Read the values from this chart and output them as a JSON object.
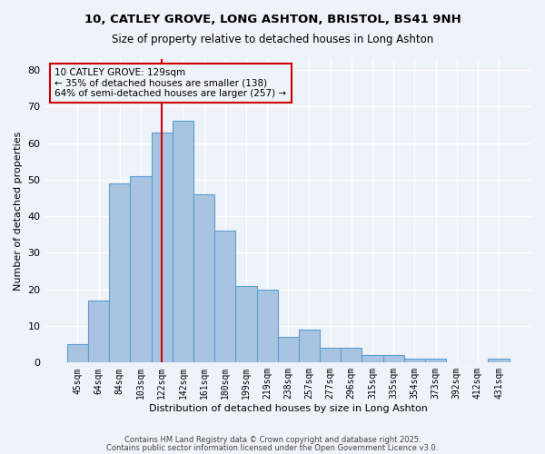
{
  "title1": "10, CATLEY GROVE, LONG ASHTON, BRISTOL, BS41 9NH",
  "title2": "Size of property relative to detached houses in Long Ashton",
  "xlabel": "Distribution of detached houses by size in Long Ashton",
  "ylabel": "Number of detached properties",
  "categories": [
    "45sqm",
    "64sqm",
    "84sqm",
    "103sqm",
    "122sqm",
    "142sqm",
    "161sqm",
    "180sqm",
    "199sqm",
    "219sqm",
    "238sqm",
    "257sqm",
    "277sqm",
    "296sqm",
    "315sqm",
    "335sqm",
    "354sqm",
    "373sqm",
    "392sqm",
    "412sqm",
    "431sqm"
  ],
  "values": [
    5,
    17,
    49,
    51,
    63,
    66,
    46,
    36,
    21,
    20,
    7,
    9,
    4,
    4,
    2,
    2,
    1,
    1,
    0,
    0,
    1
  ],
  "bar_color": "#a8c4e0",
  "bar_edge_color": "#5a9fd4",
  "bg_color": "#eef2f9",
  "grid_color": "#ffffff",
  "vline_x": 4,
  "vline_color": "#cc0000",
  "annotation_text": "10 CATLEY GROVE: 129sqm\n← 35% of detached houses are smaller (138)\n64% of semi-detached houses are larger (257) →",
  "annotation_box_color": "#cc0000",
  "ylim": [
    0,
    83
  ],
  "yticks": [
    0,
    10,
    20,
    30,
    40,
    50,
    60,
    70,
    80
  ],
  "footer1": "Contains HM Land Registry data © Crown copyright and database right 2025.",
  "footer2": "Contains public sector information licensed under the Open Government Licence v3.0."
}
